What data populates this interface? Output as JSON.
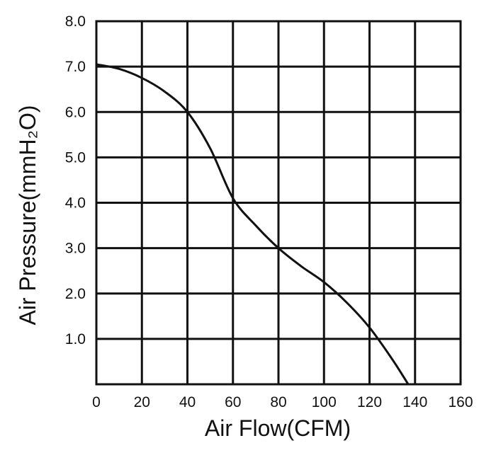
{
  "chart_data": {
    "type": "line",
    "title": "",
    "xlabel": "Air Flow(CFM)",
    "ylabel": "Air Pressure(mmH₂O)",
    "xlim": [
      0,
      160
    ],
    "ylim": [
      0,
      8
    ],
    "x_ticks": [
      0,
      20,
      40,
      60,
      80,
      100,
      120,
      140,
      160
    ],
    "x_tick_labels": [
      "0",
      "20",
      "40",
      "60",
      "80",
      "100",
      "120",
      "140",
      "160"
    ],
    "y_ticks": [
      1,
      2,
      3,
      4,
      5,
      6,
      7,
      8
    ],
    "y_tick_labels": [
      "1.0",
      "2.0",
      "3.0",
      "4.0",
      "5.0",
      "6.0",
      "7.0",
      "8.0"
    ],
    "grid": true,
    "line_color": "#111111",
    "grid_color": "#111111",
    "series": [
      {
        "x": [
          0,
          10,
          20,
          30,
          40,
          50,
          60,
          70,
          80,
          90,
          100,
          110,
          120,
          130,
          137
        ],
        "y": [
          7.05,
          6.95,
          6.75,
          6.45,
          6.0,
          5.2,
          4.1,
          3.5,
          3.0,
          2.6,
          2.25,
          1.8,
          1.25,
          0.55,
          0.0
        ]
      }
    ]
  }
}
